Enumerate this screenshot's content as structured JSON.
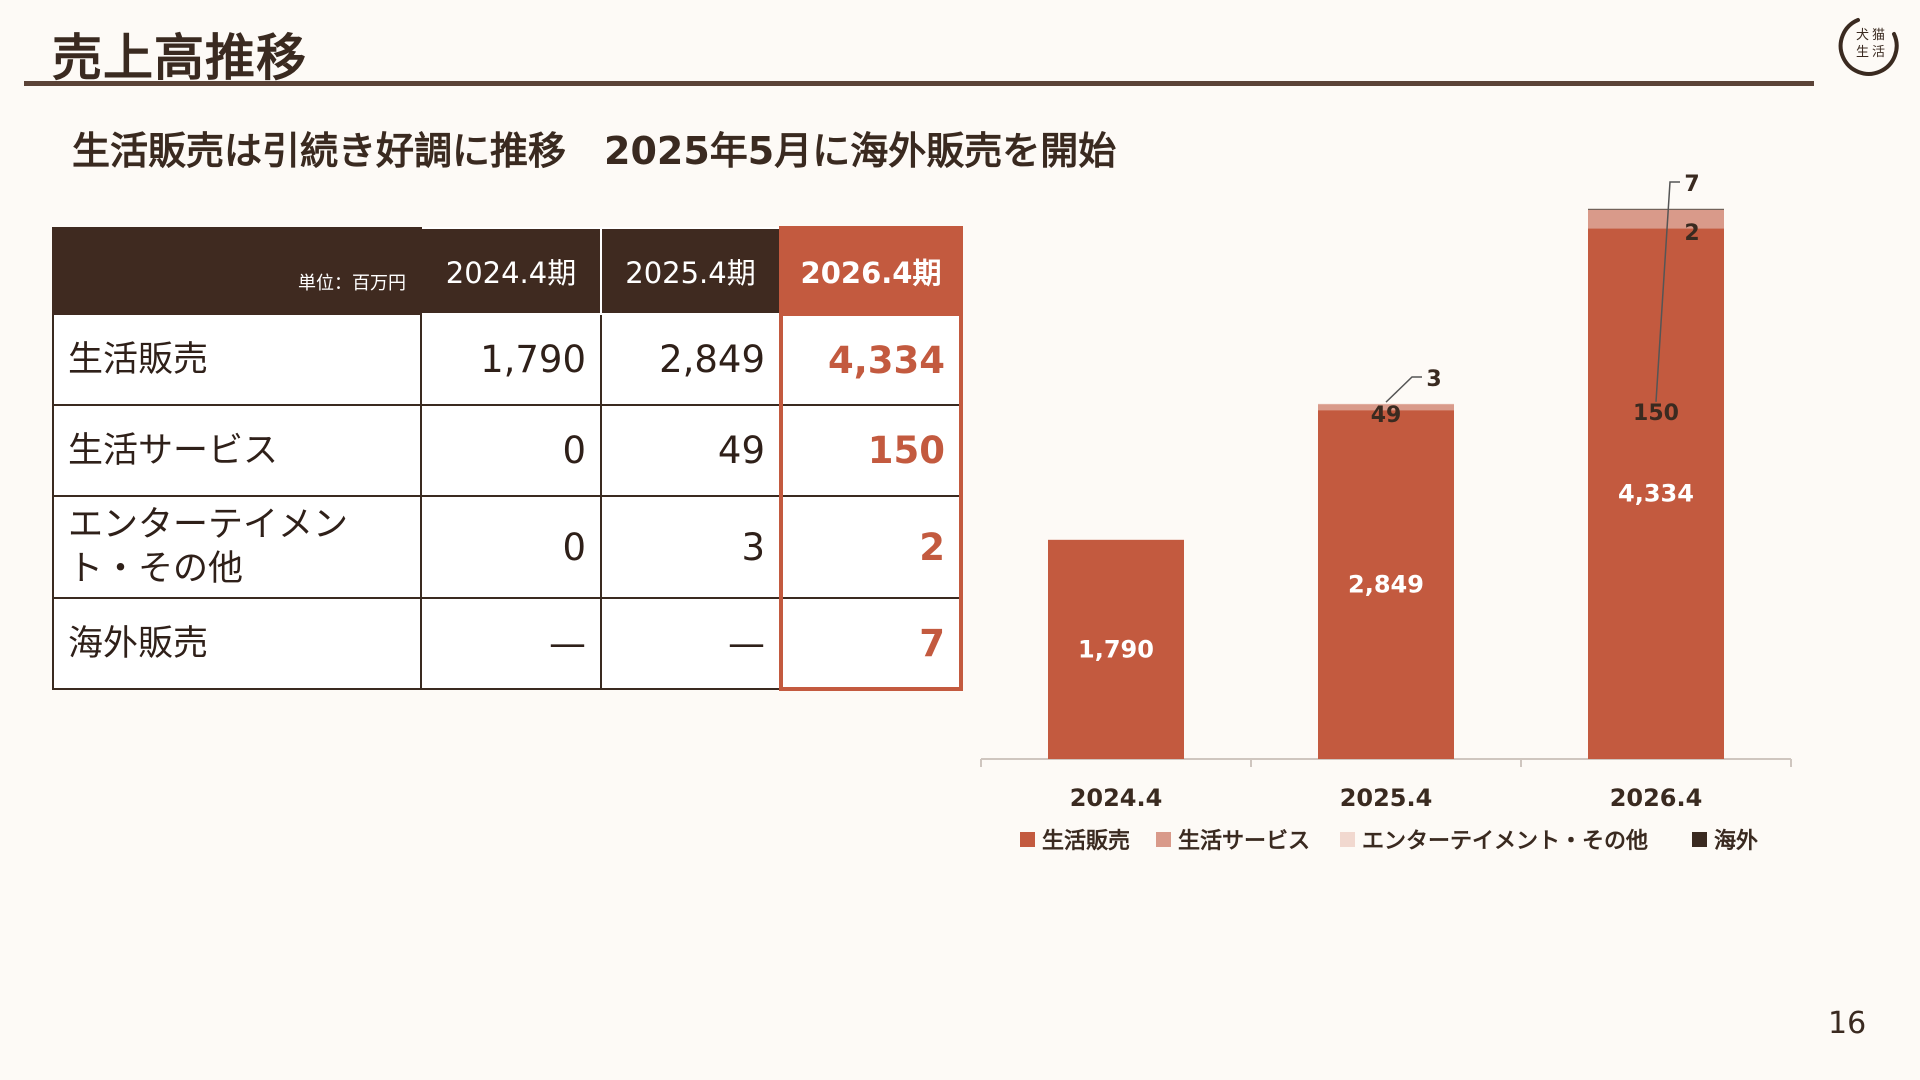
{
  "page": {
    "title": "売上高推移",
    "subtitle": "生活販売は引続き好調に推移　2025年5月に海外販売を開始",
    "page_number": "16"
  },
  "logo": {
    "text": "犬猫生活"
  },
  "table": {
    "unit_label": "単位：百万円",
    "columns": [
      "2024.4期",
      "2025.4期",
      "2026.4期"
    ],
    "highlight_column": 2,
    "rows": [
      {
        "label": "生活販売",
        "values": [
          "1,790",
          "2,849",
          "4,334"
        ]
      },
      {
        "label": "生活サービス",
        "values": [
          "0",
          "49",
          "150"
        ]
      },
      {
        "label": "エンターテイメント・その他",
        "values": [
          "0",
          "3",
          "2"
        ]
      },
      {
        "label": "海外販売",
        "values": [
          "—",
          "—",
          "7"
        ]
      }
    ]
  },
  "colors": {
    "life_sales": "#c35a3f",
    "life_service": "#d99a8a",
    "entertainment": "#f1d8cf",
    "overseas": "#3a2a20",
    "header_dark": "#3f2a20",
    "accent": "#c35a3f"
  },
  "chart_data": {
    "type": "bar",
    "stacked": true,
    "categories": [
      "2024.4",
      "2025.4",
      "2026.4"
    ],
    "series": [
      {
        "name": "生活販売",
        "color": "#c35a3f",
        "values": [
          1790,
          2849,
          4334
        ],
        "labels": [
          "1,790",
          "2,849",
          "4,334"
        ]
      },
      {
        "name": "生活サービス",
        "color": "#d99a8a",
        "values": [
          0,
          49,
          150
        ],
        "labels": [
          "",
          "49",
          "150"
        ]
      },
      {
        "name": "エンターテイメント・その他",
        "color": "#f1d8cf",
        "values": [
          0,
          3,
          2
        ],
        "labels": [
          "",
          "3",
          "2"
        ]
      },
      {
        "name": "海外",
        "color": "#3a2a20",
        "values": [
          0,
          0,
          7
        ],
        "labels": [
          "",
          "",
          "7"
        ]
      }
    ],
    "ylim": [
      0,
      4900
    ],
    "legend_position": "bottom",
    "grid": false,
    "xlabel": "",
    "ylabel": ""
  }
}
